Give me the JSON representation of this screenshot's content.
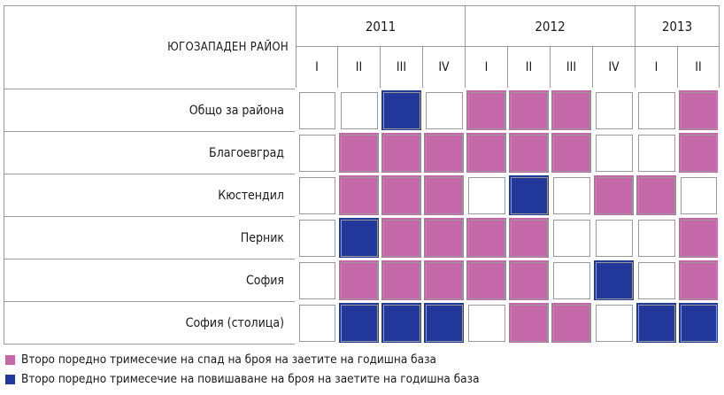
{
  "header": {
    "region": "ЮГОЗАПАДЕН РАЙОН",
    "years": [
      {
        "label": "2011",
        "span": 4
      },
      {
        "label": "2012",
        "span": 4
      },
      {
        "label": "2013",
        "span": 2
      }
    ],
    "quarters": [
      "I",
      "II",
      "III",
      "IV",
      "I",
      "II",
      "III",
      "IV",
      "I",
      "II"
    ]
  },
  "rows": [
    {
      "label": "Общо за района",
      "cells": [
        "",
        "",
        "rise",
        "",
        "fall",
        "fall",
        "fall",
        "",
        "",
        "fall"
      ]
    },
    {
      "label": "Благоевград",
      "cells": [
        "",
        "fall",
        "fall",
        "fall",
        "fall",
        "fall",
        "fall",
        "",
        "",
        "fall"
      ]
    },
    {
      "label": "Кюстендил",
      "cells": [
        "",
        "fall",
        "fall",
        "fall",
        "",
        "rise",
        "",
        "fall",
        "fall",
        ""
      ]
    },
    {
      "label": "Перник",
      "cells": [
        "",
        "rise",
        "fall",
        "fall",
        "fall",
        "fall",
        "",
        "",
        "",
        "fall"
      ]
    },
    {
      "label": "София",
      "cells": [
        "",
        "fall",
        "fall",
        "fall",
        "fall",
        "fall",
        "",
        "rise",
        "",
        "fall"
      ]
    },
    {
      "label": "София (столица)",
      "cells": [
        "",
        "rise",
        "rise",
        "rise",
        "",
        "fall",
        "fall",
        "",
        "rise",
        "rise"
      ]
    }
  ],
  "legend": [
    {
      "key": "fall",
      "color": "#c468aa",
      "text": "Второ поредно тримесечие на спад на броя на заетите на годишна база"
    },
    {
      "key": "rise",
      "color": "#22389a",
      "text": "Второ поредно тримесечие на повишаване на броя на заетите на годишна база"
    }
  ]
}
